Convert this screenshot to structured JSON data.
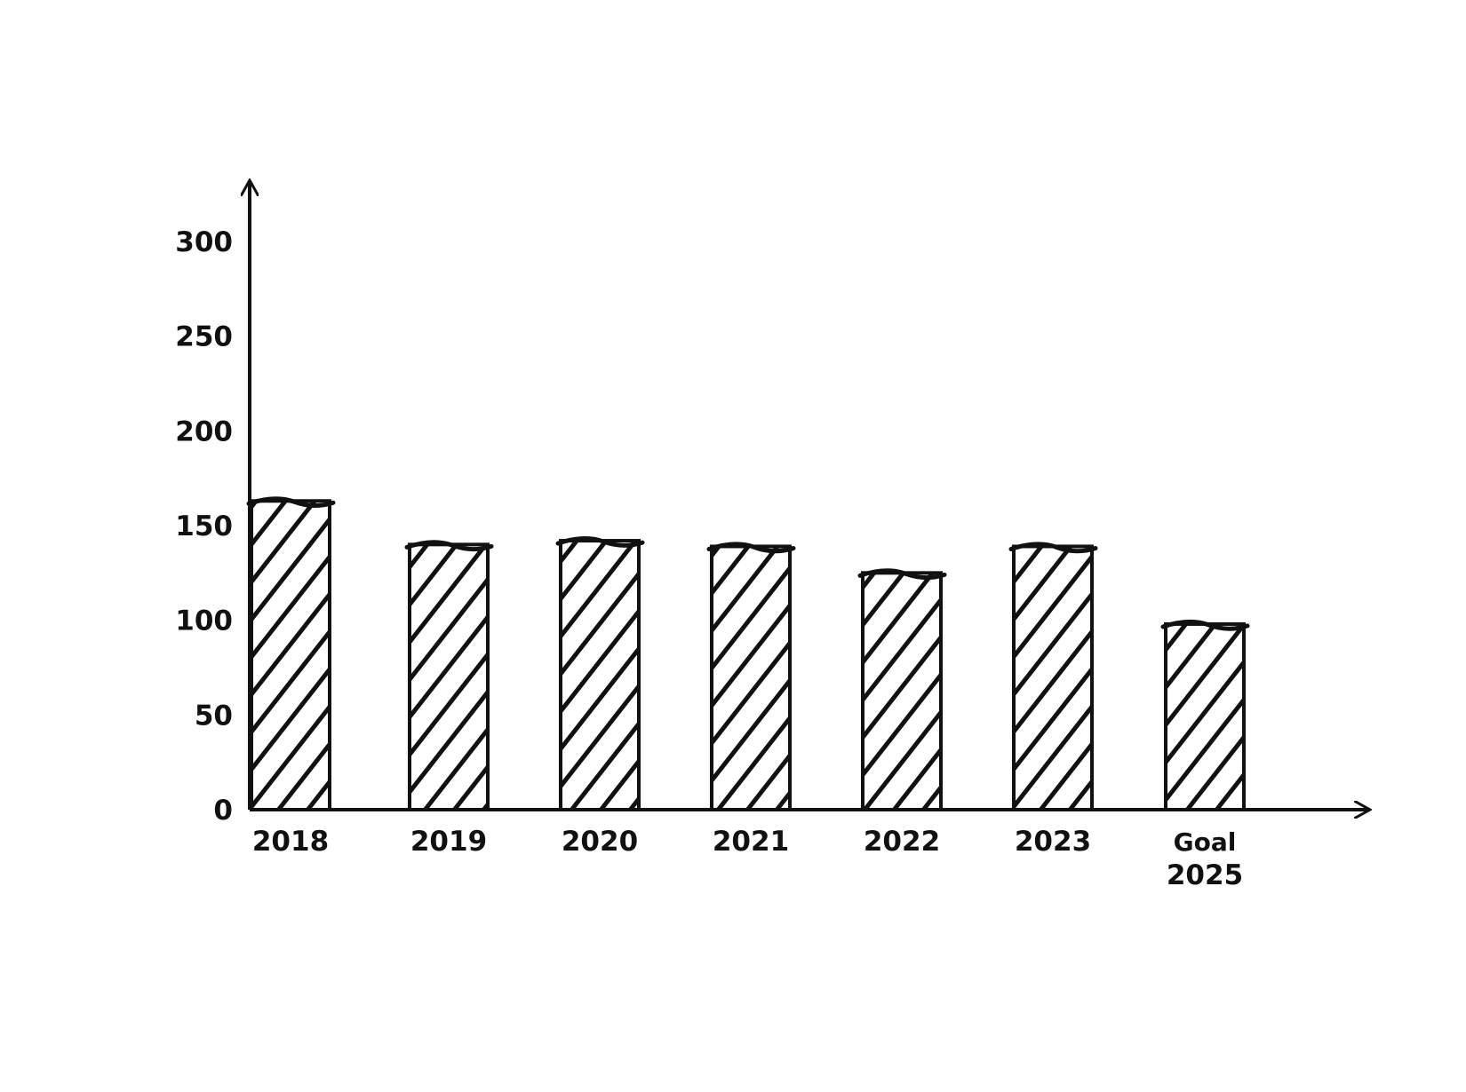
{
  "chart_data": {
    "type": "bar",
    "categories": [
      "2018",
      "2019",
      "2020",
      "2021",
      "2022",
      "2023",
      "Goal 2025"
    ],
    "category_lines": [
      [
        "2018"
      ],
      [
        "2019"
      ],
      [
        "2020"
      ],
      [
        "2021"
      ],
      [
        "2022"
      ],
      [
        "2023"
      ],
      [
        "Goal",
        "2025"
      ]
    ],
    "values": [
      163,
      140,
      142,
      139,
      125,
      139,
      98
    ],
    "ylim": [
      0,
      300
    ],
    "yticks": [
      0,
      50,
      100,
      150,
      200,
      250,
      300
    ],
    "title": "",
    "xlabel": "",
    "ylabel": "",
    "grid": false,
    "legend": "none",
    "style": "hand-drawn hatched bars",
    "colors": {
      "ink": "#111111",
      "goal_label": "#1e7b34",
      "background": "#ffffff"
    }
  }
}
